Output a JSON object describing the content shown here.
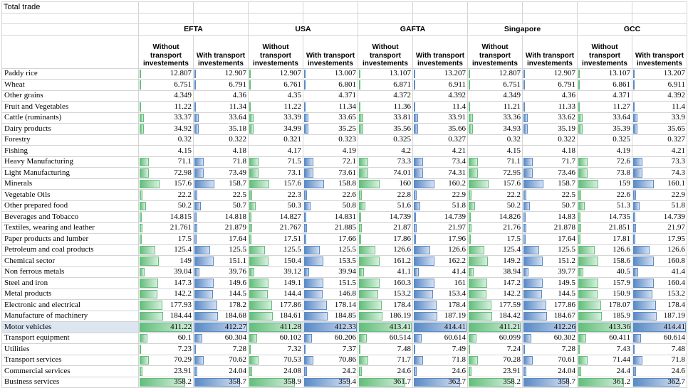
{
  "title": "Total trade",
  "groups": [
    "EFTA",
    "USA",
    "GAFTA",
    "Singapore",
    "GCC"
  ],
  "sub_headers": [
    "Without transport investements",
    "With transport investements"
  ],
  "max_value": 414.41,
  "colors": {
    "without_bar": "#63be7b",
    "with_bar": "#5a8ac6",
    "highlight_row": "#dce6f1"
  },
  "rows": [
    {
      "label": "Paddy rice",
      "values": [
        "12.807",
        "12.907",
        "12.907",
        "13.007",
        "13.107",
        "13.207",
        "12.807",
        "12.907",
        "13.107",
        "13.207"
      ]
    },
    {
      "label": "Wheat",
      "values": [
        "6.751",
        "6.791",
        "6.761",
        "6.801",
        "6.871",
        "6.911",
        "6.751",
        "6.791",
        "6.861",
        "6.911"
      ]
    },
    {
      "label": "Other grains",
      "values": [
        "4.349",
        "4.36",
        "4.35",
        "4.371",
        "4.372",
        "4.392",
        "4.349",
        "4.36",
        "4.371",
        "4.392"
      ]
    },
    {
      "label": "Fruit and Vegetables",
      "values": [
        "11.22",
        "11.34",
        "11.22",
        "11.34",
        "11.36",
        "11.4",
        "11.21",
        "11.33",
        "11.27",
        "11.4"
      ]
    },
    {
      "label": "Cattle (ruminants)",
      "values": [
        "33.37",
        "33.64",
        "33.39",
        "33.65",
        "33.81",
        "33.91",
        "33.36",
        "33.62",
        "33.64",
        "33.9"
      ]
    },
    {
      "label": "Dairy products",
      "values": [
        "34.92",
        "35.18",
        "34.99",
        "35.25",
        "35.56",
        "35.66",
        "34.93",
        "35.19",
        "35.39",
        "35.65"
      ]
    },
    {
      "label": "Forestry",
      "values": [
        "0.32",
        "0.322",
        "0.321",
        "0.323",
        "0.325",
        "0.327",
        "0.32",
        "0.322",
        "0.325",
        "0.327"
      ]
    },
    {
      "label": "Fishing",
      "values": [
        "4.15",
        "4.18",
        "4.17",
        "4.19",
        "4.2",
        "4.21",
        "4.15",
        "4.18",
        "4.19",
        "4.21"
      ]
    },
    {
      "label": "Heavy Manufacturing",
      "values": [
        "71.1",
        "71.8",
        "71.5",
        "72.1",
        "73.3",
        "73.4",
        "71.1",
        "71.7",
        "72.6",
        "73.3"
      ]
    },
    {
      "label": "Light Manufacturing",
      "values": [
        "72.98",
        "73.49",
        "73.1",
        "73.61",
        "74.01",
        "74.31",
        "72.95",
        "73.46",
        "73.8",
        "74.3"
      ]
    },
    {
      "label": "Minerals",
      "values": [
        "157.6",
        "158.7",
        "157.6",
        "158.8",
        "160",
        "160.2",
        "157.6",
        "158.7",
        "159",
        "160.1"
      ]
    },
    {
      "label": "Vegetable Oils",
      "values": [
        "22.2",
        "22.5",
        "22.3",
        "22.6",
        "22.8",
        "22.9",
        "22.2",
        "22.5",
        "22.6",
        "22.9"
      ]
    },
    {
      "label": "Other prepared food",
      "values": [
        "50.2",
        "50.7",
        "50.3",
        "50.8",
        "51.6",
        "51.8",
        "50.2",
        "50.7",
        "51.3",
        "51.8"
      ]
    },
    {
      "label": "Beverages and Tobacco",
      "values": [
        "14.815",
        "14.818",
        "14.827",
        "14.831",
        "14.739",
        "14.739",
        "14.826",
        "14.83",
        "14.735",
        "14.739"
      ]
    },
    {
      "label": "Textiles, wearing and leather",
      "values": [
        "21.761",
        "21.879",
        "21.767",
        "21.885",
        "21.87",
        "21.97",
        "21.76",
        "21.878",
        "21.851",
        "21.97"
      ]
    },
    {
      "label": "Paper products and lumber",
      "values": [
        "17.5",
        "17.64",
        "17.51",
        "17.66",
        "17.86",
        "17.96",
        "17.5",
        "17.64",
        "17.81",
        "17.95"
      ]
    },
    {
      "label": "Petroleum and coal products",
      "values": [
        "125.4",
        "125.5",
        "125.5",
        "125.5",
        "126.6",
        "126.6",
        "125.4",
        "125.5",
        "126.6",
        "126.6"
      ]
    },
    {
      "label": "Chemical sector",
      "values": [
        "149",
        "151.1",
        "150.4",
        "153.5",
        "161.2",
        "162.2",
        "149.2",
        "151.2",
        "158.6",
        "160.8"
      ]
    },
    {
      "label": "Non ferrous metals",
      "values": [
        "39.04",
        "39.76",
        "39.12",
        "39.94",
        "41.1",
        "41.4",
        "38.94",
        "39.77",
        "40.5",
        "41.4"
      ]
    },
    {
      "label": "Steel and iron",
      "values": [
        "147.3",
        "149.6",
        "149.1",
        "151.5",
        "160.3",
        "161",
        "147.2",
        "149.5",
        "157.9",
        "160.4"
      ]
    },
    {
      "label": "Metal products",
      "values": [
        "142.2",
        "144.5",
        "144.4",
        "146.8",
        "153.2",
        "153.4",
        "142.2",
        "144.5",
        "150.9",
        "153.2"
      ]
    },
    {
      "label": "Electronic and electrical",
      "values": [
        "177.93",
        "178.2",
        "177.86",
        "178.14",
        "178.4",
        "178.4",
        "177.59",
        "177.86",
        "178.07",
        "178.4"
      ]
    },
    {
      "label": "Manufacture of machinery",
      "values": [
        "184.44",
        "184.68",
        "184.61",
        "184.85",
        "186.19",
        "187.19",
        "184.42",
        "184.67",
        "185.9",
        "187.19"
      ]
    },
    {
      "label": "Motor vehicles",
      "highlight": true,
      "values": [
        "411.22",
        "412.27",
        "411.28",
        "412.33",
        "413.41",
        "414.41",
        "411.21",
        "412.26",
        "413.36",
        "414.41"
      ]
    },
    {
      "label": "Transport equipment",
      "values": [
        "60.1",
        "60.304",
        "60.102",
        "60.206",
        "60.514",
        "60.614",
        "60.099",
        "60.302",
        "60.411",
        "60.614"
      ]
    },
    {
      "label": "Utilities",
      "values": [
        "7.23",
        "7.28",
        "7.32",
        "7.37",
        "7.48",
        "7.49",
        "7.24",
        "7.28",
        "7.43",
        "7.48"
      ]
    },
    {
      "label": "Transport services",
      "values": [
        "70.29",
        "70.62",
        "70.53",
        "70.86",
        "71.7",
        "71.8",
        "70.28",
        "70.61",
        "71.44",
        "71.8"
      ]
    },
    {
      "label": "Commercial services",
      "values": [
        "23.91",
        "24.04",
        "24.08",
        "24.2",
        "24.6",
        "24.6",
        "23.91",
        "24.04",
        "24.4",
        "24.6"
      ]
    },
    {
      "label": "Business services",
      "values": [
        "358.2",
        "358.7",
        "358.9",
        "359.4",
        "361.7",
        "362.7",
        "358.2",
        "358.7",
        "361.2",
        "362.7"
      ]
    }
  ]
}
